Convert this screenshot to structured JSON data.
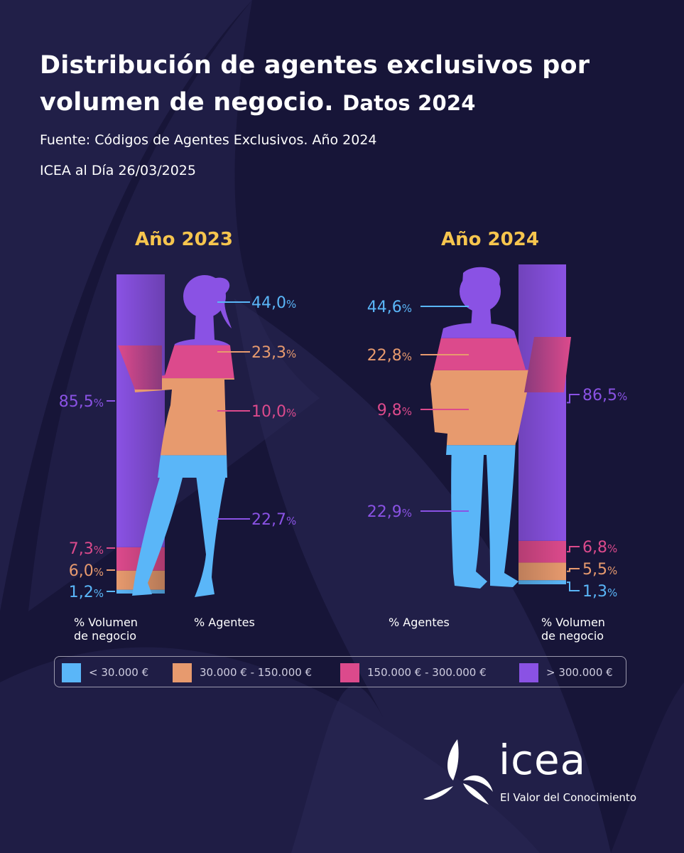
{
  "header": {
    "title_line1": "Distribución de agentes exclusivos por",
    "title_line2a": "volumen de negocio.",
    "title_line2b": "Datos 2024",
    "source": "Fuente: Códigos de Agentes Exclusivos. Año 2024",
    "bulletin": "ICEA al Día 26/03/2025"
  },
  "colors": {
    "background": "#171538",
    "tier1": "#5ab6f8",
    "tier2": "#e79a6e",
    "tier3": "#dc4a8c",
    "tier4": "#8a52e4",
    "year": "#f6c54e"
  },
  "legend": [
    {
      "label": "< 30.000 €",
      "color": "#5ab6f8"
    },
    {
      "label": "30.000 € - 150.000 €",
      "color": "#e79a6e"
    },
    {
      "label": "150.000 € - 300.000 €",
      "color": "#dc4a8c"
    },
    {
      "label": "> 300.000 €",
      "color": "#8a52e4"
    }
  ],
  "chart_data": [
    {
      "type": "bar",
      "title": "Año 2023",
      "categories": [
        "< 30.000 €",
        "30.000 € - 150.000 €",
        "150.000 € - 300.000 €",
        "> 300.000 €"
      ],
      "series": [
        {
          "name": "% Volumen de negocio",
          "values": [
            1.2,
            6.0,
            7.3,
            85.5
          ],
          "labels": [
            "1,2",
            "6,0",
            "7,3",
            "85,5"
          ]
        },
        {
          "name": "% Agentes",
          "values": [
            44.0,
            23.3,
            10.0,
            22.7
          ],
          "labels": [
            "44,0",
            "23,3",
            "10,0",
            "22,7"
          ]
        }
      ],
      "unit": "%",
      "volume_label_line1": "% Volumen",
      "volume_label_line2": "de negocio",
      "agents_label": "% Agentes"
    },
    {
      "type": "bar",
      "title": "Año 2024",
      "categories": [
        "< 30.000 €",
        "30.000 € - 150.000 €",
        "150.000 € - 300.000 €",
        "> 300.000 €"
      ],
      "series": [
        {
          "name": "% Volumen de negocio",
          "values": [
            1.3,
            5.5,
            6.8,
            86.5
          ],
          "labels": [
            "1,3",
            "5,5",
            "6,8",
            "86,5"
          ]
        },
        {
          "name": "% Agentes",
          "values": [
            44.6,
            22.8,
            9.8,
            22.9
          ],
          "labels": [
            "44,6",
            "22,8",
            "9,8",
            "22,9"
          ]
        }
      ],
      "unit": "%",
      "volume_label_line1": "% Volumen",
      "volume_label_line2": "de negocio",
      "agents_label": "% Agentes"
    }
  ],
  "logo": {
    "word": "icea",
    "tagline": "El Valor del Conocimiento"
  }
}
